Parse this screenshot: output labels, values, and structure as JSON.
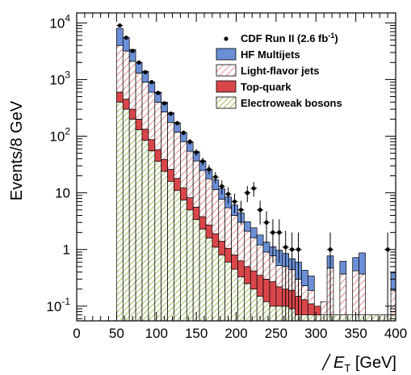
{
  "chart_data": {
    "type": "bar",
    "stacked": true,
    "y_scale": "log",
    "xlabel": "E̸T [GeV]",
    "xlabel_main": "E",
    "xlabel_sub": "T",
    "xlabel_unit": "[GeV]",
    "ylabel": "Events/8 GeV",
    "xlim": [
      0,
      400
    ],
    "ylim": [
      0.055,
      15000
    ],
    "x_ticks": [
      0,
      50,
      100,
      150,
      200,
      250,
      300,
      350,
      400
    ],
    "x_tick_labels": [
      "0",
      "50",
      "100",
      "150",
      "200",
      "250",
      "300",
      "350",
      "400"
    ],
    "y_ticks": [
      {
        "value": 10000,
        "base": "10",
        "exp": "4"
      },
      {
        "value": 1000,
        "base": "10",
        "exp": "3"
      },
      {
        "value": 100,
        "base": "10",
        "exp": "2"
      },
      {
        "value": 10,
        "base": "10",
        "exp": ""
      },
      {
        "value": 1,
        "base": "1",
        "exp": ""
      },
      {
        "value": 0.1,
        "base": "10",
        "exp": "-1"
      }
    ],
    "bin_edges": [
      50,
      58,
      66,
      74,
      82,
      90,
      98,
      106,
      114,
      122,
      130,
      138,
      146,
      154,
      162,
      170,
      178,
      186,
      194,
      202,
      210,
      218,
      226,
      234,
      242,
      250,
      258,
      266,
      274,
      282,
      290,
      298,
      306,
      314,
      322,
      330,
      338,
      346,
      354,
      362,
      370,
      378,
      386,
      394,
      402
    ],
    "series": [
      {
        "name": "Electroweak bosons",
        "pattern": "green-hatch",
        "color": "#8db33a",
        "values": [
          400,
          300,
          200,
          130,
          85,
          55,
          36,
          24,
          16,
          11,
          7.5,
          5,
          3.4,
          2.3,
          1.6,
          1.1,
          0.8,
          0.6,
          0.45,
          0.33,
          0.25,
          0.2,
          0.15,
          0.12,
          0.1,
          0.1,
          0.1,
          0.09,
          0.07,
          0.07,
          0.07,
          0.07,
          0.07,
          0.07,
          0.07,
          0.07,
          0.07,
          0.07,
          0.07,
          0.07,
          0.07,
          0.07,
          0.07,
          0.07
        ]
      },
      {
        "name": "Top-quark",
        "pattern": "solid",
        "color": "#d9464a",
        "values": [
          200,
          150,
          100,
          70,
          48,
          32,
          22,
          15,
          10,
          7,
          4.7,
          3.2,
          2.2,
          1.5,
          1.1,
          0.8,
          0.6,
          0.45,
          0.35,
          0.3,
          0.25,
          0.22,
          0.2,
          0.18,
          0.17,
          0.12,
          0.1,
          0.1,
          0.08,
          0.06,
          0.04,
          0.03,
          0,
          0,
          0,
          0,
          0,
          0,
          0,
          0,
          0,
          0,
          0,
          0
        ]
      },
      {
        "name": "Light-flavor jets",
        "pattern": "red-hatch",
        "color": "#d9464a",
        "values": [
          3400,
          2750,
          1800,
          1100,
          770,
          510,
          340,
          230,
          150,
          100,
          68,
          46,
          31,
          21,
          15,
          9.5,
          6.3,
          4.4,
          3.2,
          2.4,
          1.6,
          1.2,
          0.85,
          0.6,
          0.5,
          0.3,
          0.3,
          0.25,
          0.15,
          0.1,
          0.08,
          0,
          0.05,
          0.4,
          0,
          0.3,
          0,
          0.35,
          0.3,
          0,
          0,
          0,
          0,
          0.12
        ]
      },
      {
        "name": "HF Multijets",
        "pattern": "solid",
        "color": "#6b8fd6",
        "values": [
          4000,
          2300,
          1300,
          700,
          500,
          310,
          200,
          130,
          84,
          55,
          36,
          24,
          17,
          12,
          8,
          5.6,
          4.1,
          3,
          2.1,
          1.4,
          1,
          0.8,
          0.6,
          0.45,
          0.35,
          0.45,
          0.35,
          0.25,
          0.3,
          0.2,
          0.15,
          0,
          0,
          0.3,
          0,
          0.25,
          0,
          0.3,
          0.5,
          0,
          0,
          0,
          0,
          0.2
        ]
      }
    ],
    "data_series": {
      "name": "CDF Run II (2.6 fb",
      "name_sup": "-1",
      "name_end": ")",
      "points": [
        {
          "x": 54,
          "y": 9000
        },
        {
          "x": 62,
          "y": 5500
        },
        {
          "x": 70,
          "y": 3200
        },
        {
          "x": 78,
          "y": 2000
        },
        {
          "x": 86,
          "y": 1350
        },
        {
          "x": 94,
          "y": 900
        },
        {
          "x": 102,
          "y": 580
        },
        {
          "x": 110,
          "y": 380
        },
        {
          "x": 118,
          "y": 250
        },
        {
          "x": 126,
          "y": 170
        },
        {
          "x": 134,
          "y": 115
        },
        {
          "x": 142,
          "y": 80
        },
        {
          "x": 150,
          "y": 52
        },
        {
          "x": 158,
          "y": 36
        },
        {
          "x": 166,
          "y": 26
        },
        {
          "x": 174,
          "y": 19
        },
        {
          "x": 182,
          "y": 13
        },
        {
          "x": 190,
          "y": 9.5
        },
        {
          "x": 198,
          "y": 7
        },
        {
          "x": 206,
          "y": 5
        },
        {
          "x": 214,
          "y": 10
        },
        {
          "x": 222,
          "y": 12
        },
        {
          "x": 230,
          "y": 5
        },
        {
          "x": 238,
          "y": 3
        },
        {
          "x": 246,
          "y": 2
        },
        {
          "x": 254,
          "y": 2
        },
        {
          "x": 262,
          "y": 1.1
        },
        {
          "x": 270,
          "y": 1
        },
        {
          "x": 278,
          "y": 1
        },
        {
          "x": 318,
          "y": 1
        },
        {
          "x": 390,
          "y": 1
        }
      ]
    },
    "legend_placement": "top-right",
    "grid": false
  }
}
